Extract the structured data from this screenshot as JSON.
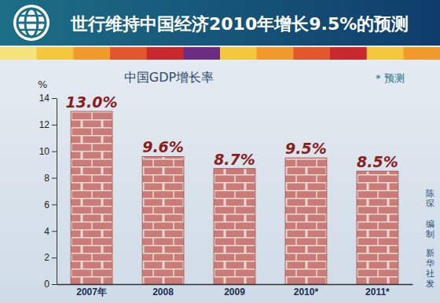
{
  "chart_data": {
    "type": "bar",
    "title": "世行维持中国经济2010年增长9.5%的预测",
    "subtitle": "中国GDP增长率",
    "y_label": "%",
    "annotations": [
      "* 预测",
      "陈琛 编制",
      "新华社发"
    ],
    "categories": [
      "2007年",
      "2008",
      "2009",
      "2010*",
      "2011*"
    ],
    "values": [
      13.0,
      9.6,
      8.7,
      9.5,
      8.5
    ],
    "value_labels": [
      "13.0%",
      "9.6%",
      "8.7%",
      "9.5%",
      "8.5%"
    ],
    "data_labels": true,
    "color": "#c97b78",
    "ylim": [
      0,
      14
    ],
    "yticks": [
      0,
      2,
      4,
      6,
      8,
      10,
      12,
      14
    ],
    "grid": false
  }
}
